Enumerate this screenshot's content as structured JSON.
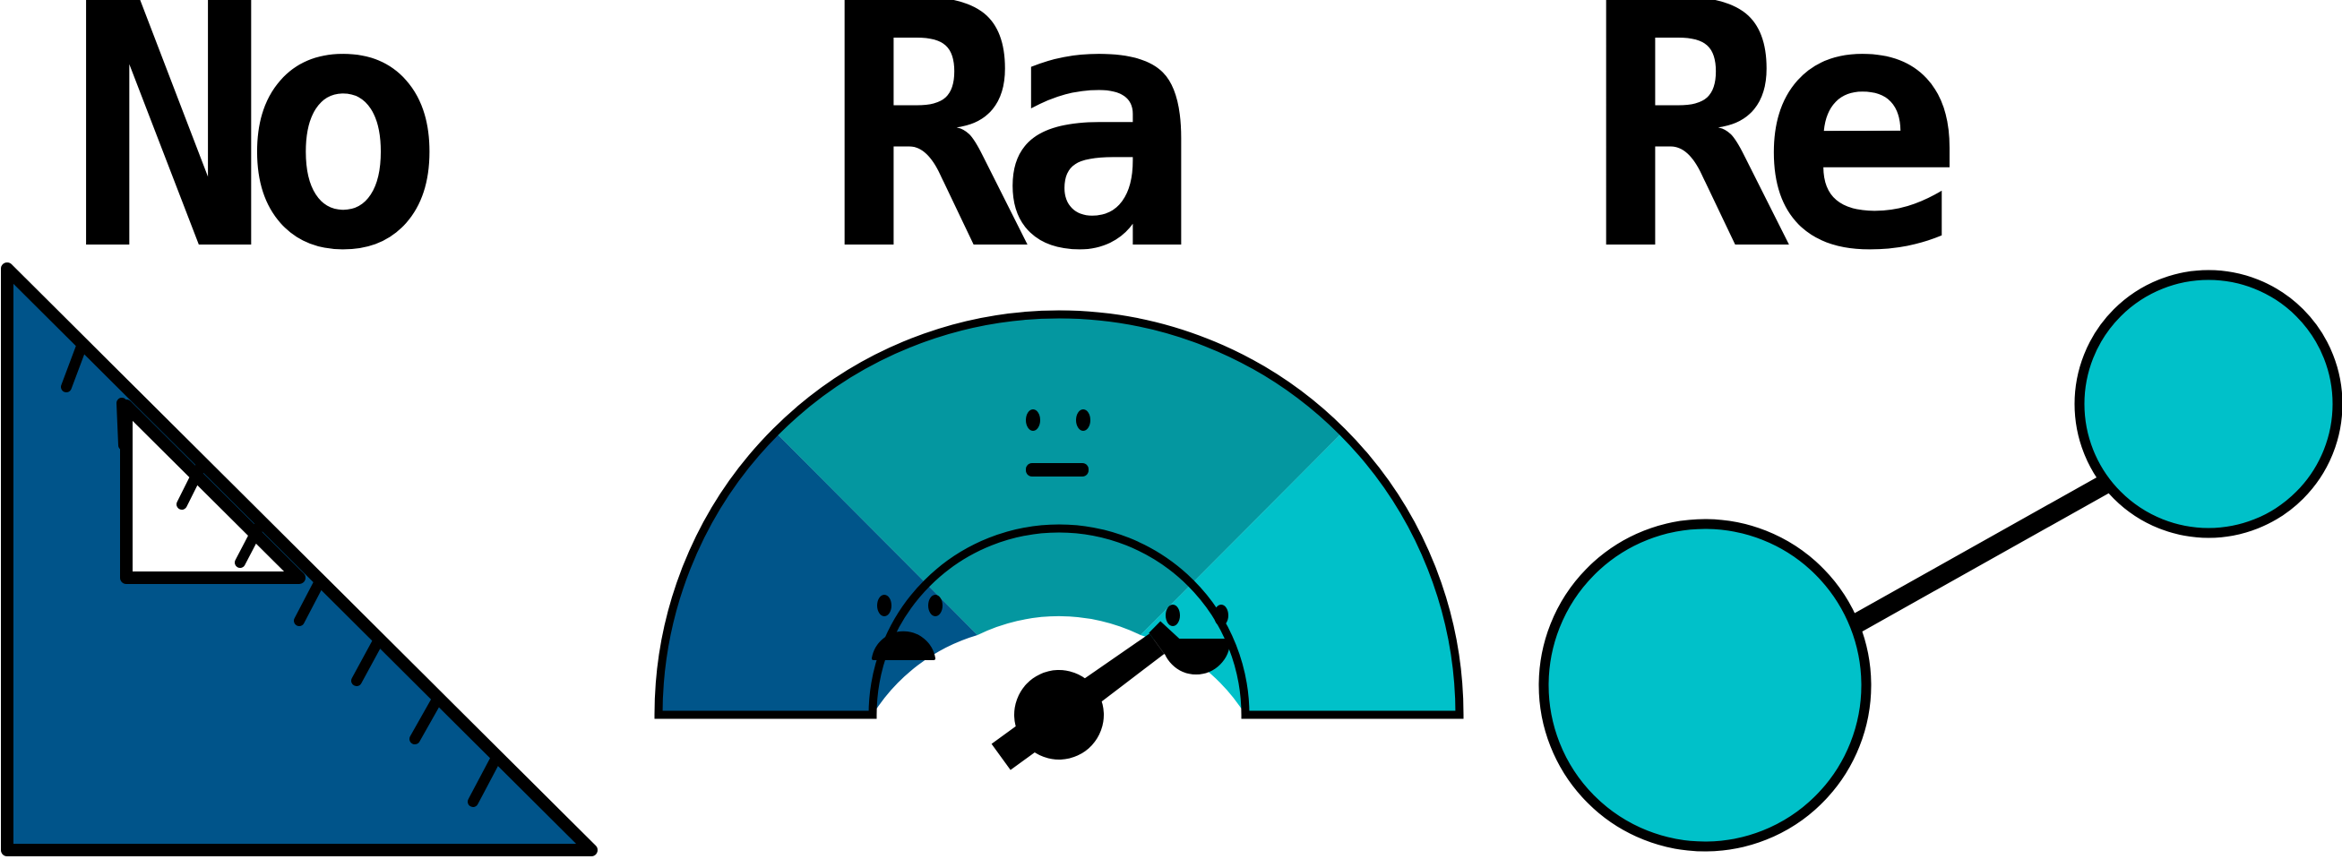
{
  "wordmarks": [
    {
      "text": "No"
    },
    {
      "text": "Ra"
    },
    {
      "text": "Re"
    }
  ],
  "icons": {
    "triangle": "set-square-ruler-icon",
    "gauge": "sentiment-gauge-icon",
    "graph": "connected-nodes-icon"
  },
  "gauge": {
    "needle_level": 0.8,
    "faces": [
      "sad-face",
      "neutral-face",
      "happy-face"
    ]
  },
  "colors": {
    "outline": "#000000",
    "ruler_blue": "#00548a",
    "gauge_blue": "#00558a",
    "gauge_teal": "#0497a0",
    "gauge_cyan": "#00c1c9",
    "node_cyan": "#00c1c9"
  }
}
